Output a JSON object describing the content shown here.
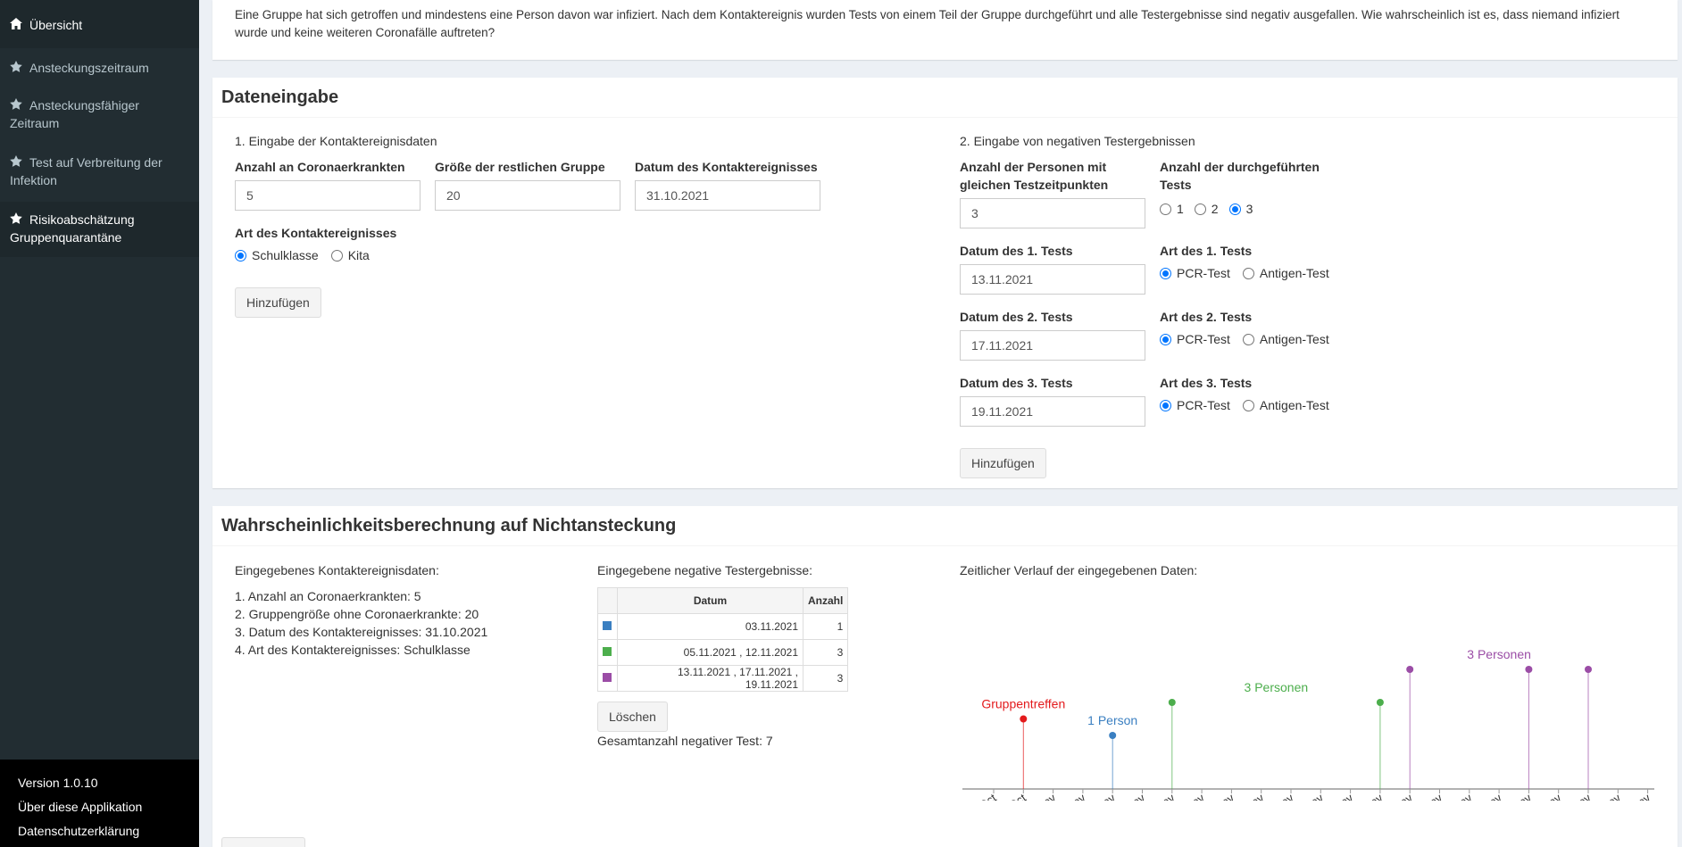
{
  "sidebar": {
    "items": [
      {
        "label": "Übersicht",
        "icon": "home-icon"
      },
      {
        "label": "Ansteckungszeitraum",
        "icon": "star-icon"
      },
      {
        "label": "Ansteckungsfähiger Zeitraum",
        "icon": "star-icon"
      },
      {
        "label": "Test auf Verbreitung der Infektion",
        "icon": "star-icon"
      },
      {
        "label": "Risikoabschätzung Gruppenquarantäne",
        "icon": "star-icon"
      }
    ],
    "footer": {
      "version": "Version 1.0.10",
      "about": "Über diese Applikation",
      "privacy": "Datenschutzerklärung"
    }
  },
  "intro": {
    "text": "Eine Gruppe hat sich getroffen und mindestens eine Person davon war infiziert. Nach dem Kontaktereignis wurden Tests von einem Teil der Gruppe durchgeführt und alle Testergebnisse sind negativ ausgefallen. Wie wahrscheinlich ist es, dass niemand infiziert wurde und keine weiteren Coronafälle auftreten?"
  },
  "dateneingabe": {
    "title": "Dateneingabe",
    "contact": {
      "heading": "1. Eingabe der Kontaktereignisdaten",
      "infected_label": "Anzahl an Coronaerkrankten",
      "infected_value": "5",
      "group_label": "Größe der restlichen Gruppe",
      "group_value": "20",
      "date_label": "Datum des Kontaktereignisses",
      "date_value": "31.10.2021",
      "type_label": "Art des Kontaktereignisses",
      "type_options": [
        "Schulklasse",
        "Kita"
      ],
      "type_selected": "Schulklasse",
      "add_button": "Hinzufügen"
    },
    "tests": {
      "heading": "2. Eingabe von negativen Testergebnissen",
      "persons_label": "Anzahl der Personen mit gleichen Testzeitpunkten",
      "persons_value": "3",
      "count_label": "Anzahl der durchgeführten Tests",
      "count_options": [
        "1",
        "2",
        "3"
      ],
      "count_selected": "3",
      "rows": [
        {
          "date_label": "Datum des 1. Tests",
          "date_value": "13.11.2021",
          "type_label": "Art des 1. Tests"
        },
        {
          "date_label": "Datum des 2. Tests",
          "date_value": "17.11.2021",
          "type_label": "Art des 2. Tests"
        },
        {
          "date_label": "Datum des 3. Tests",
          "date_value": "19.11.2021",
          "type_label": "Art des 3. Tests"
        }
      ],
      "type_options": [
        "PCR-Test",
        "Antigen-Test"
      ],
      "type_selected": "PCR-Test",
      "add_button": "Hinzufügen"
    }
  },
  "result": {
    "title": "Wahrscheinlichkeitsberechnung auf Nichtansteckung",
    "summary_heading": "Eingegebenes Kontaktereignisdaten:",
    "summary": [
      "1. Anzahl an Coronaerkrankten: 5",
      "2. Gruppengröße ohne Coronaerkrankte: 20",
      "3. Datum des Kontaktereignisses: 31.10.2021",
      "4. Art des Kontaktereignisses: Schulklasse"
    ],
    "table_heading": "Eingegebene negative Testergebnisse:",
    "table": {
      "headers": [
        "",
        "Datum",
        "Anzahl"
      ],
      "rows": [
        {
          "color": "#3a7fc1",
          "datum": "03.11.2021",
          "anzahl": "1"
        },
        {
          "color": "#4cae4c",
          "datum": "05.11.2021 , 12.11.2021",
          "anzahl": "3"
        },
        {
          "color": "#9b4da6",
          "datum": "13.11.2021 , 17.11.2021 , 19.11.2021",
          "anzahl": "3"
        }
      ]
    },
    "delete_button": "Löschen",
    "total": "Gesamtanzahl negativer Test: 7",
    "chart_heading": "Zeitlicher Verlauf der eingegebenen Daten:"
  },
  "chart_data": {
    "type": "timeline",
    "x_ticks": [
      "30 Oct",
      "31 Oct",
      "01 Nov",
      "02 Nov",
      "03 Nov",
      "04 Nov",
      "05 Nov",
      "06 Nov",
      "07 Nov",
      "08 Nov",
      "09 Nov",
      "10 Nov",
      "11 Nov",
      "12 Nov",
      "13 Nov",
      "14 Nov",
      "15 Nov",
      "16 Nov",
      "17 Nov",
      "18 Nov",
      "19 Nov",
      "20 Nov",
      "21 Nov"
    ],
    "first_tick_partial": "Oct",
    "events": [
      {
        "date": "31 Oct",
        "height": 3,
        "color": "#e31a1c"
      },
      {
        "date": "03 Nov",
        "height": 2,
        "color": "#3a7fc1"
      },
      {
        "date": "05 Nov",
        "height": 4,
        "color": "#4cae4c"
      },
      {
        "date": "12 Nov",
        "height": 4,
        "color": "#4cae4c"
      },
      {
        "date": "13 Nov",
        "height": 6,
        "color": "#9b4da6"
      },
      {
        "date": "17 Nov",
        "height": 6,
        "color": "#9b4da6"
      },
      {
        "date": "19 Nov",
        "height": 6,
        "color": "#9b4da6"
      }
    ],
    "labels": [
      {
        "text": "Gruppentreffen",
        "date": "31 Oct",
        "level": 3,
        "color": "#e31a1c"
      },
      {
        "text": "1 Person",
        "date": "03 Nov",
        "level": 2,
        "color": "#3a7fc1"
      },
      {
        "text": "3  Personen",
        "date": "08.5 Nov",
        "level": 4,
        "color": "#4cae4c"
      },
      {
        "text": "3  Personen",
        "date": "16 Nov",
        "level": 6,
        "color": "#9b4da6"
      }
    ]
  }
}
